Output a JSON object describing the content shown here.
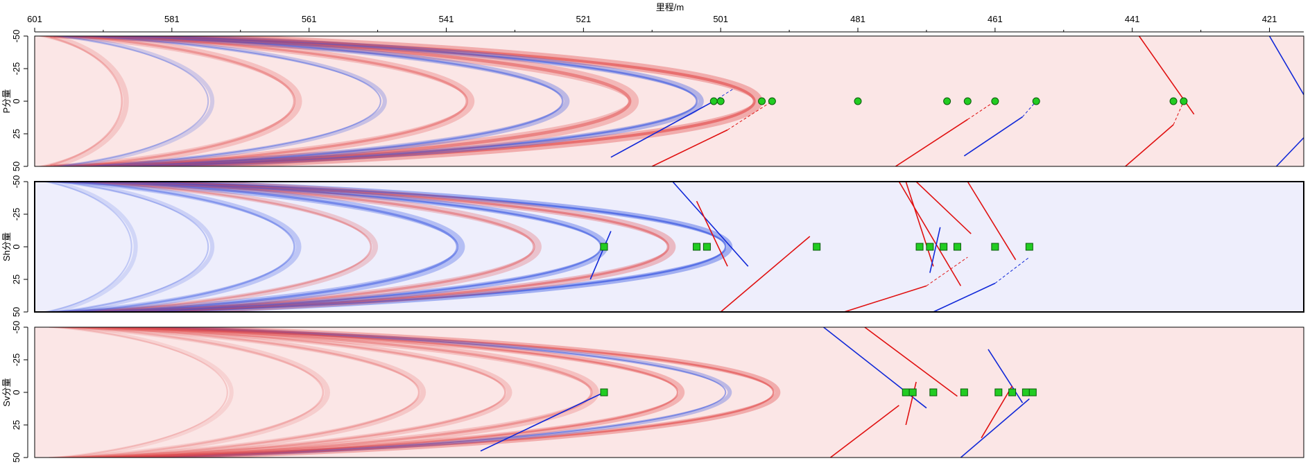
{
  "chart_data": {
    "type": "heatmap",
    "x_axis": {
      "label": "里程/m",
      "position": "top",
      "range": [
        601,
        416
      ],
      "ticks": [
        601,
        581,
        561,
        541,
        521,
        501,
        481,
        461,
        441,
        421
      ],
      "reversed": true
    },
    "panels": [
      {
        "id": "p",
        "ylabel": "P分量",
        "ylim": [
          -50,
          50
        ],
        "yticks": [
          -50,
          -25,
          0,
          25,
          50
        ],
        "background": "#fbe6e6",
        "bands": [
          {
            "apex": 0.75,
            "width": 12,
            "color": "#e04040",
            "opacity": 0.35
          },
          {
            "apex": 0.69,
            "width": 8,
            "color": "#3050e0",
            "opacity": 0.35
          },
          {
            "apex": 0.62,
            "width": 14,
            "color": "#e04040",
            "opacity": 0.28
          },
          {
            "apex": 0.55,
            "width": 8,
            "color": "#3050e0",
            "opacity": 0.3
          },
          {
            "apex": 0.45,
            "width": 10,
            "color": "#e04040",
            "opacity": 0.25
          },
          {
            "apex": 0.36,
            "width": 6,
            "color": "#3050e0",
            "opacity": 0.25
          },
          {
            "apex": 0.27,
            "width": 10,
            "color": "#e04040",
            "opacity": 0.22
          },
          {
            "apex": 0.18,
            "width": 6,
            "color": "#3050e0",
            "opacity": 0.2
          },
          {
            "apex": 0.09,
            "width": 8,
            "color": "#e04040",
            "opacity": 0.18
          }
        ],
        "markers": {
          "shape": "circle",
          "color": "#22cc22",
          "y": 0,
          "x": [
            502,
            501,
            495,
            493.5,
            481,
            465,
            468,
            461,
            455,
            435,
            433.5
          ]
        },
        "lines": [
          {
            "color": "blue",
            "points": [
              [
                517,
                43
              ],
              [
                502,
                0
              ]
            ]
          },
          {
            "color": "blue",
            "dashed": true,
            "points": [
              [
                502,
                0
              ],
              [
                499,
                -10
              ]
            ]
          },
          {
            "color": "red",
            "points": [
              [
                511,
                50
              ],
              [
                500,
                22
              ]
            ]
          },
          {
            "color": "red",
            "dashed": true,
            "points": [
              [
                500,
                22
              ],
              [
                493.5,
                0
              ]
            ]
          },
          {
            "color": "red",
            "points": [
              [
                475.5,
                50
              ],
              [
                465,
                14
              ]
            ]
          },
          {
            "color": "red",
            "dashed": true,
            "points": [
              [
                465,
                14
              ],
              [
                461,
                0
              ]
            ]
          },
          {
            "color": "blue",
            "points": [
              [
                465.5,
                42
              ],
              [
                457,
                12
              ]
            ]
          },
          {
            "color": "blue",
            "dashed": true,
            "points": [
              [
                457,
                12
              ],
              [
                455,
                0
              ]
            ]
          },
          {
            "color": "red",
            "points": [
              [
                440,
                -50
              ],
              [
                432,
                10
              ]
            ]
          },
          {
            "color": "red",
            "points": [
              [
                442,
                50
              ],
              [
                435,
                18
              ]
            ]
          },
          {
            "color": "red",
            "dashed": true,
            "points": [
              [
                435,
                18
              ],
              [
                433.5,
                0
              ]
            ]
          },
          {
            "color": "blue",
            "points": [
              [
                421,
                -50
              ],
              [
                416,
                -5
              ]
            ]
          },
          {
            "color": "blue",
            "points": [
              [
                420,
                50
              ],
              [
                416,
                28
              ]
            ]
          }
        ]
      },
      {
        "id": "sh",
        "ylabel": "Sh分量",
        "ylim": [
          -50,
          50
        ],
        "yticks": [
          -50,
          -25,
          0,
          25,
          50
        ],
        "background": "#eeeefc",
        "bands": [
          {
            "apex": 0.72,
            "width": 8,
            "color": "#3050e0",
            "opacity": 0.4
          },
          {
            "apex": 0.66,
            "width": 10,
            "color": "#e04040",
            "opacity": 0.3
          },
          {
            "apex": 0.59,
            "width": 8,
            "color": "#3050e0",
            "opacity": 0.35
          },
          {
            "apex": 0.52,
            "width": 10,
            "color": "#e04040",
            "opacity": 0.25
          },
          {
            "apex": 0.44,
            "width": 10,
            "color": "#3050e0",
            "opacity": 0.3
          },
          {
            "apex": 0.35,
            "width": 8,
            "color": "#e04040",
            "opacity": 0.22
          },
          {
            "apex": 0.27,
            "width": 8,
            "color": "#3050e0",
            "opacity": 0.25
          },
          {
            "apex": 0.18,
            "width": 6,
            "color": "#3050e0",
            "opacity": 0.18
          },
          {
            "apex": 0.1,
            "width": 6,
            "color": "#3050e0",
            "opacity": 0.15
          }
        ],
        "markers": {
          "shape": "square",
          "color": "#22cc22",
          "y": 0,
          "x": [
            518,
            504.5,
            503,
            487,
            472,
            470.5,
            468.5,
            466.5,
            461,
            456
          ]
        },
        "lines": [
          {
            "color": "blue",
            "points": [
              [
                520,
                25
              ],
              [
                517,
                -12
              ]
            ]
          },
          {
            "color": "blue",
            "points": [
              [
                508,
                -50
              ],
              [
                497,
                15
              ]
            ]
          },
          {
            "color": "red",
            "points": [
              [
                504.5,
                -35
              ],
              [
                500,
                15
              ]
            ]
          },
          {
            "color": "red",
            "points": [
              [
                501,
                50
              ],
              [
                488,
                -8
              ]
            ]
          },
          {
            "color": "red",
            "points": [
              [
                483,
                50
              ],
              [
                471,
                30
              ]
            ]
          },
          {
            "color": "red",
            "dashed": true,
            "points": [
              [
                471,
                30
              ],
              [
                465,
                8
              ]
            ]
          },
          {
            "color": "blue",
            "points": [
              [
                470,
                50
              ],
              [
                461,
                28
              ]
            ]
          },
          {
            "color": "blue",
            "dashed": true,
            "points": [
              [
                461,
                28
              ],
              [
                456,
                8
              ]
            ]
          },
          {
            "color": "red",
            "points": [
              [
                475,
                -50
              ],
              [
                466,
                30
              ]
            ]
          },
          {
            "color": "red",
            "points": [
              [
                472.5,
                -50
              ],
              [
                464.5,
                -10
              ]
            ]
          },
          {
            "color": "red",
            "points": [
              [
                474,
                -50
              ],
              [
                470,
                15
              ]
            ]
          },
          {
            "color": "blue",
            "points": [
              [
                470.5,
                20
              ],
              [
                469,
                -15
              ]
            ]
          },
          {
            "color": "red",
            "points": [
              [
                465,
                -50
              ],
              [
                458,
                10
              ]
            ]
          }
        ]
      },
      {
        "id": "sv",
        "ylabel": "Sv分量",
        "ylim": [
          -50,
          50
        ],
        "yticks": [
          -50,
          -25,
          0,
          25,
          50
        ],
        "background": "#fbe6e6",
        "bands": [
          {
            "apex": 0.77,
            "width": 8,
            "color": "#e04040",
            "opacity": 0.35
          },
          {
            "apex": 0.72,
            "width": 6,
            "color": "#3050e0",
            "opacity": 0.3
          },
          {
            "apex": 0.67,
            "width": 8,
            "color": "#e04040",
            "opacity": 0.3
          },
          {
            "apex": 0.58,
            "width": 10,
            "color": "#e04040",
            "opacity": 0.22
          },
          {
            "apex": 0.49,
            "width": 8,
            "color": "#e04040",
            "opacity": 0.2
          },
          {
            "apex": 0.4,
            "width": 8,
            "color": "#e04040",
            "opacity": 0.18
          },
          {
            "apex": 0.3,
            "width": 8,
            "color": "#e04040",
            "opacity": 0.15
          },
          {
            "apex": 0.2,
            "width": 6,
            "color": "#e04040",
            "opacity": 0.12
          }
        ],
        "markers": {
          "shape": "square",
          "color": "#22cc22",
          "y": 0,
          "x": [
            518,
            474,
            473,
            470,
            465.5,
            460.5,
            458.5,
            456.5,
            455.5
          ]
        },
        "lines": [
          {
            "color": "blue",
            "points": [
              [
                536,
                45
              ],
              [
                518,
                0
              ]
            ]
          },
          {
            "color": "blue",
            "points": [
              [
                486,
                -50
              ],
              [
                471,
                12
              ]
            ]
          },
          {
            "color": "red",
            "points": [
              [
                480,
                -50
              ],
              [
                466.5,
                3
              ]
            ]
          },
          {
            "color": "red",
            "points": [
              [
                485,
                50
              ],
              [
                475,
                10
              ]
            ]
          },
          {
            "color": "red",
            "points": [
              [
                474,
                25
              ],
              [
                472.5,
                -8
              ]
            ]
          },
          {
            "color": "blue",
            "points": [
              [
                462,
                -33
              ],
              [
                457,
                8
              ]
            ]
          },
          {
            "color": "red",
            "points": [
              [
                463,
                35
              ],
              [
                458.5,
                -5
              ]
            ]
          },
          {
            "color": "blue",
            "points": [
              [
                466,
                50
              ],
              [
                456,
                5
              ]
            ]
          }
        ]
      }
    ]
  }
}
